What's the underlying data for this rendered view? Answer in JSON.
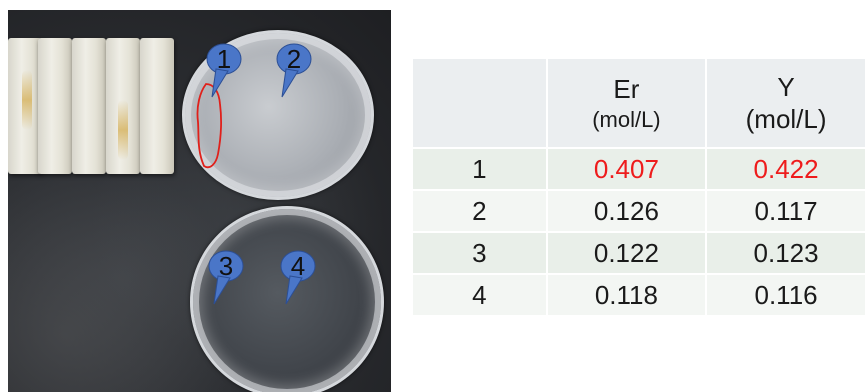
{
  "callouts": [
    "1",
    "2",
    "3",
    "4"
  ],
  "table": {
    "headers": [
      {
        "line1": "",
        "line2": ""
      },
      {
        "line1": "Er",
        "line2": "(mol/L)"
      },
      {
        "line1": "Y",
        "line2": "(mol/L)"
      }
    ],
    "rows": [
      {
        "label": "1",
        "er": "0.407",
        "y": "0.422",
        "highlight": true
      },
      {
        "label": "2",
        "er": "0.126",
        "y": "0.117",
        "highlight": false
      },
      {
        "label": "3",
        "er": "0.122",
        "y": "0.123",
        "highlight": false
      },
      {
        "label": "4",
        "er": "0.118",
        "y": "0.116",
        "highlight": false
      }
    ]
  },
  "colors": {
    "highlight": "#ee1c1c",
    "callout": "#4a76c8",
    "outline": "#e0201b"
  }
}
